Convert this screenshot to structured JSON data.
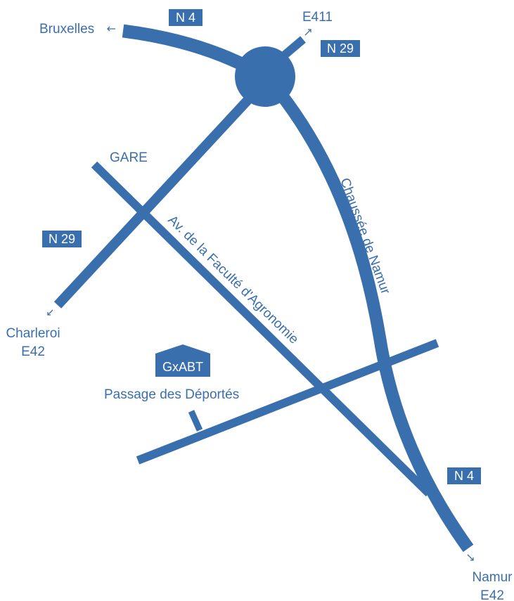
{
  "places": [
    {
      "label": "Bruxelles"
    },
    {
      "label": "E411"
    },
    {
      "label": "GARE"
    },
    {
      "label": "Charleroi",
      "road": "E42"
    },
    {
      "label": "Namur",
      "road": "E42"
    }
  ],
  "road_signs": [
    "N 4",
    "N 29",
    "N 29",
    "N 4"
  ],
  "streets": [
    "Chaussée de Namur",
    "Av. de la Faculté d'Agronomie",
    "Passage des Déportés"
  ],
  "building": "GxABT"
}
